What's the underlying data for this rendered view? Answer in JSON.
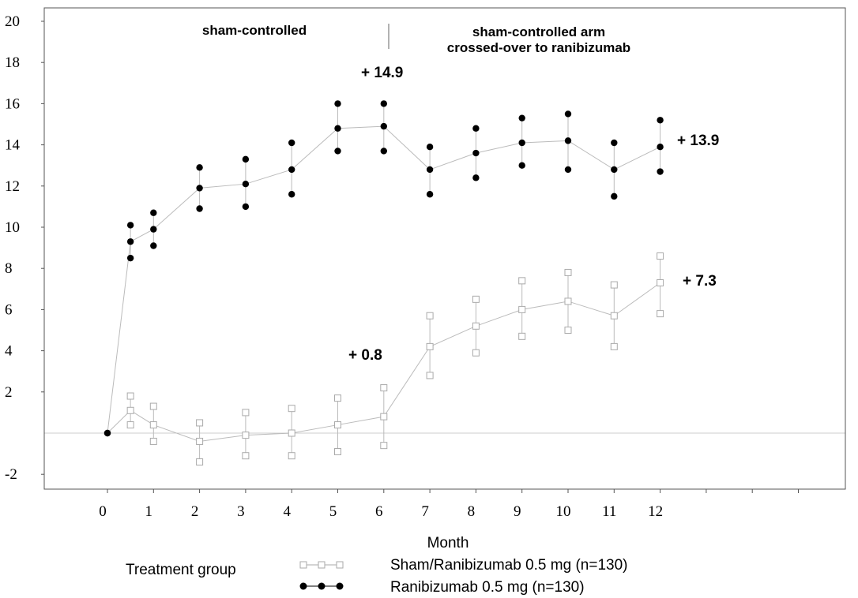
{
  "chart_data": {
    "type": "line",
    "xlabel": "Month",
    "x": [
      0,
      0.5,
      1,
      2,
      3,
      4,
      5,
      6,
      7,
      8,
      9,
      10,
      11,
      12
    ],
    "x_ticks": [
      "0",
      "1",
      "2",
      "3",
      "4",
      "5",
      "6",
      "7",
      "8",
      "9",
      "10",
      "11",
      "12"
    ],
    "y_ticks": [
      "-2",
      "2",
      "4",
      "6",
      "8",
      "10",
      "12",
      "14",
      "16",
      "18",
      "20"
    ],
    "ylim": [
      -3,
      20
    ],
    "zero_line": true,
    "series": [
      {
        "name": "Sham/Ranibizumab 0.5 mg (n=130)",
        "marker": "open-square",
        "color": "#aaaaaa",
        "values": [
          0,
          1.1,
          0.4,
          -0.4,
          -0.1,
          0.0,
          0.4,
          0.8,
          4.2,
          5.2,
          6.0,
          6.4,
          5.7,
          7.3
        ],
        "lower": [
          0,
          0.4,
          -0.4,
          -1.4,
          -1.1,
          -1.1,
          -0.9,
          -0.6,
          2.8,
          3.9,
          4.7,
          5.0,
          4.2,
          5.8
        ],
        "upper": [
          0,
          1.8,
          1.3,
          0.5,
          1.0,
          1.2,
          1.7,
          2.2,
          5.7,
          6.5,
          7.4,
          7.8,
          7.2,
          8.6
        ]
      },
      {
        "name": "Ranibizumab 0.5 mg (n=130)",
        "marker": "filled-circle",
        "color": "#000000",
        "values": [
          0,
          9.3,
          9.9,
          11.9,
          12.1,
          12.8,
          14.8,
          14.9,
          12.8,
          13.6,
          14.1,
          14.2,
          12.8,
          13.9
        ],
        "lower": [
          0,
          8.5,
          9.1,
          10.9,
          11.0,
          11.6,
          13.7,
          13.7,
          11.6,
          12.4,
          13.0,
          12.8,
          11.5,
          12.7
        ],
        "upper": [
          0,
          10.1,
          10.7,
          12.9,
          13.3,
          14.1,
          16.0,
          16.0,
          13.9,
          14.8,
          15.3,
          15.5,
          14.1,
          15.2
        ]
      }
    ],
    "annotations": [
      {
        "id": "sham-controlled",
        "text": "sham-controlled"
      },
      {
        "id": "crossover-line1",
        "text": "sham-controlled arm"
      },
      {
        "id": "crossover-line2",
        "text": "crossed-over to ranibizumab"
      }
    ],
    "callouts": {
      "peak": "+ 14.9",
      "ran_end": "+ 13.9",
      "sham_end": "+ 7.3",
      "sham_m6": "+ 0.8"
    },
    "legend": {
      "title": "Treatment group",
      "placement": "bottom"
    }
  }
}
